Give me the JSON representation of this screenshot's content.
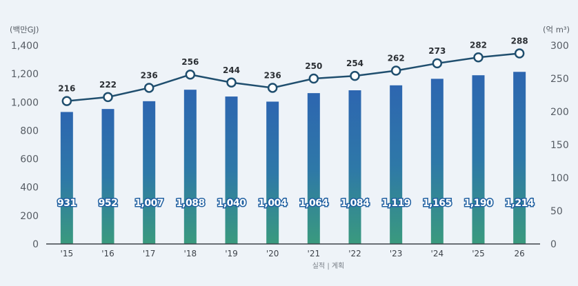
{
  "chart_data": {
    "type": "bar+line",
    "categories": [
      "'15",
      "'16",
      "'17",
      "'18",
      "'19",
      "'20",
      "'21",
      "'22",
      "'23",
      "'24",
      "'25",
      "26"
    ],
    "bar_series": {
      "name": "백만GJ",
      "values": [
        931,
        952,
        1007,
        1088,
        1040,
        1004,
        1064,
        1084,
        1119,
        1165,
        1190,
        1214
      ],
      "labels": [
        "931",
        "952",
        "1,007",
        "1,088",
        "1,040",
        "1,004",
        "1,064",
        "1,084",
        "1,119",
        "1,165",
        "1,190",
        "1,214"
      ],
      "axis": "left"
    },
    "line_series": {
      "name": "억 m³",
      "values": [
        216,
        222,
        236,
        256,
        244,
        236,
        250,
        254,
        262,
        273,
        282,
        288
      ],
      "labels": [
        "216",
        "222",
        "236",
        "256",
        "244",
        "236",
        "250",
        "254",
        "262",
        "273",
        "282",
        "288"
      ],
      "axis": "right"
    },
    "left_axis": {
      "unit": "(백만GJ)",
      "ylim": [
        0,
        1400
      ],
      "ticks": [
        0,
        200,
        400,
        600,
        800,
        1000,
        1200,
        1400
      ],
      "tick_labels": [
        "0",
        "200",
        "400",
        "600",
        "800",
        "1,000",
        "1,200",
        "1,400"
      ]
    },
    "right_axis": {
      "unit": "(억 m³)",
      "ylim": [
        0,
        300
      ],
      "ticks": [
        0,
        50,
        100,
        150,
        200,
        250,
        300
      ],
      "tick_labels": [
        "0",
        "50",
        "100",
        "150",
        "200",
        "250",
        "300"
      ]
    },
    "legend_text": "실적 | 계획",
    "grid": false
  },
  "colors": {
    "bar_top": "#2d66b0",
    "bar_bottom": "#3a9a7e",
    "line": "#1f4e6e",
    "marker_fill": "#ffffff",
    "baseline": "#3d4249"
  }
}
